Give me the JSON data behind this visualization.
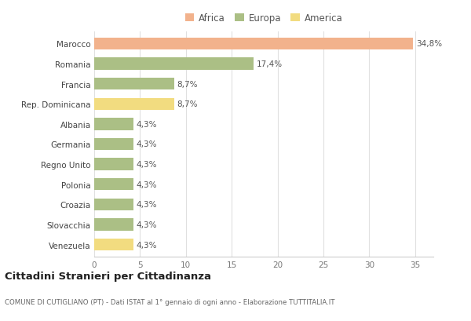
{
  "countries": [
    "Marocco",
    "Romania",
    "Francia",
    "Rep. Dominicana",
    "Albania",
    "Germania",
    "Regno Unito",
    "Polonia",
    "Croazia",
    "Slovacchia",
    "Venezuela"
  ],
  "values": [
    34.8,
    17.4,
    8.7,
    8.7,
    4.3,
    4.3,
    4.3,
    4.3,
    4.3,
    4.3,
    4.3
  ],
  "labels": [
    "34,8%",
    "17,4%",
    "8,7%",
    "8,7%",
    "4,3%",
    "4,3%",
    "4,3%",
    "4,3%",
    "4,3%",
    "4,3%",
    "4,3%"
  ],
  "colors": [
    "#F2B28C",
    "#ABBF85",
    "#ABBF85",
    "#F2DC80",
    "#ABBF85",
    "#ABBF85",
    "#ABBF85",
    "#ABBF85",
    "#ABBF85",
    "#ABBF85",
    "#F2DC80"
  ],
  "legend": [
    {
      "label": "Africa",
      "color": "#F2B28C"
    },
    {
      "label": "Europa",
      "color": "#ABBF85"
    },
    {
      "label": "America",
      "color": "#F2DC80"
    }
  ],
  "title": "Cittadini Stranieri per Cittadinanza",
  "subtitle": "COMUNE DI CUTIGLIANO (PT) - Dati ISTAT al 1° gennaio di ogni anno - Elaborazione TUTTITALIA.IT",
  "xlim": [
    0,
    37
  ],
  "xticks": [
    0,
    5,
    10,
    15,
    20,
    25,
    30,
    35
  ],
  "background_color": "#ffffff",
  "bar_height": 0.6
}
